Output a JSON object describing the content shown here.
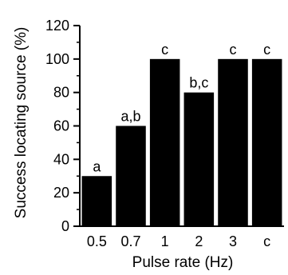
{
  "chart_data": {
    "type": "bar",
    "title": "",
    "xlabel": "Pulse rate (Hz)",
    "ylabel": "Success locating source (%)",
    "categories": [
      "0.5",
      "0.7",
      "1",
      "2",
      "3",
      "c"
    ],
    "values": [
      30,
      60,
      100,
      80,
      100,
      100
    ],
    "bar_labels": [
      "a",
      "a,b",
      "c",
      "b,c",
      "c",
      "c"
    ],
    "ylim": [
      0,
      120
    ],
    "yticks": [
      "0",
      "20",
      "40",
      "60",
      "80",
      "100",
      "120"
    ],
    "grid": false,
    "colors": {
      "bar": "#000000",
      "axis": "#000000"
    }
  }
}
